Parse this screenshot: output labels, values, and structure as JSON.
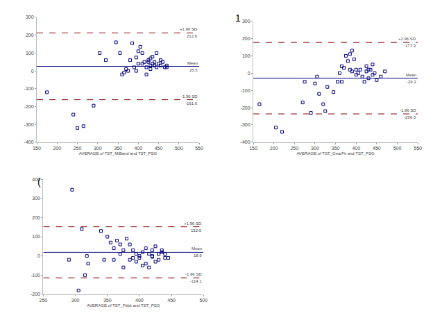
{
  "chart_data": [
    {
      "type": "scatter",
      "x_label": "AVERAGE of TST_MiBand and TST_PSG",
      "x": [
        175,
        240,
        250,
        265,
        290,
        305,
        320,
        345,
        355,
        360,
        365,
        370,
        375,
        380,
        385,
        390,
        395,
        400,
        405,
        410,
        410,
        415,
        420,
        420,
        425,
        425,
        430,
        430,
        435,
        435,
        440,
        440,
        445,
        445,
        450,
        455,
        460,
        465,
        470,
        470,
        455,
        430,
        400,
        395
      ],
      "values": [
        -120,
        -245,
        -320,
        -310,
        -195,
        100,
        60,
        160,
        100,
        -20,
        -10,
        10,
        0,
        60,
        155,
        20,
        75,
        110,
        135,
        100,
        40,
        50,
        20,
        -20,
        60,
        50,
        30,
        70,
        40,
        80,
        30,
        50,
        100,
        20,
        40,
        30,
        50,
        20,
        20,
        30,
        60,
        10,
        40,
        0
      ],
      "color": "#000080",
      "marker": "square-open",
      "xlim": [
        150,
        550
      ],
      "xticks": [
        150,
        200,
        250,
        300,
        350,
        400,
        450,
        500,
        550
      ],
      "ylim": [
        -400,
        300
      ],
      "yticks": [
        -400,
        -300,
        -200,
        -100,
        0,
        100,
        200,
        300
      ],
      "reference_lines": [
        {
          "label": "+1.96 SD",
          "value": 212.6,
          "value_label": "212.6",
          "line_style": "dashed",
          "color": "#800000"
        },
        {
          "label": "Mean",
          "value": 25.5,
          "value_label": "25.5",
          "line_style": "solid",
          "color": "#000080"
        },
        {
          "label": "-1.96 SD",
          "value": -161.6,
          "value_label": "-161.6",
          "line_style": "dashed",
          "color": "#800000"
        }
      ]
    },
    {
      "type": "scatter",
      "x_label": "AVERAGE of TST_GearFit and TST_PSG",
      "panel_label": "1",
      "x": [
        165,
        205,
        220,
        270,
        275,
        290,
        300,
        305,
        310,
        320,
        325,
        330,
        345,
        355,
        360,
        365,
        365,
        370,
        375,
        380,
        385,
        385,
        390,
        395,
        390,
        400,
        400,
        405,
        410,
        415,
        420,
        425,
        425,
        430,
        430,
        435,
        440,
        440,
        445,
        450,
        460,
        470
      ],
      "values": [
        -180,
        -315,
        -340,
        -170,
        -50,
        -230,
        -60,
        -20,
        -120,
        -180,
        -220,
        -80,
        -110,
        -50,
        0,
        -50,
        40,
        30,
        100,
        70,
        110,
        20,
        130,
        80,
        10,
        -10,
        20,
        0,
        20,
        -20,
        -50,
        10,
        40,
        20,
        -30,
        20,
        50,
        -10,
        0,
        -40,
        -20,
        10
      ],
      "color": "#000080",
      "marker": "square-open",
      "xlim": [
        150,
        550
      ],
      "xticks": [
        150,
        200,
        250,
        300,
        350,
        400,
        450,
        500,
        550
      ],
      "ylim": [
        -400,
        300
      ],
      "yticks": [
        -400,
        -300,
        -200,
        -100,
        0,
        100,
        200,
        300
      ],
      "reference_lines": [
        {
          "label": "+1.96 SD",
          "value": 177.3,
          "value_label": "177.3",
          "line_style": "dashed",
          "color": "#800000"
        },
        {
          "label": "Mean",
          "value": -29.3,
          "value_label": "-29.3",
          "line_style": "solid",
          "color": "#000080"
        },
        {
          "label": "-1.96 SD",
          "value": -236.0,
          "value_label": "-236.0",
          "line_style": "dashed",
          "color": "#800000"
        }
      ]
    },
    {
      "type": "scatter",
      "x_label": "AVERAGE of TST_Fitbit and TST_PSG",
      "panel_label": "(",
      "x": [
        290,
        295,
        305,
        310,
        315,
        318,
        320,
        340,
        345,
        350,
        355,
        360,
        360,
        365,
        370,
        370,
        375,
        375,
        380,
        385,
        385,
        390,
        390,
        395,
        395,
        400,
        400,
        405,
        405,
        410,
        410,
        415,
        415,
        420,
        420,
        425,
        425,
        430,
        430,
        435,
        435,
        440,
        440,
        445,
        420
      ],
      "values": [
        -20,
        345,
        -180,
        140,
        -100,
        0,
        -40,
        130,
        -20,
        100,
        70,
        40,
        -20,
        80,
        60,
        10,
        30,
        -60,
        90,
        -20,
        60,
        30,
        -10,
        10,
        -30,
        0,
        -10,
        20,
        -50,
        -40,
        40,
        10,
        -60,
        0,
        30,
        -30,
        50,
        10,
        -20,
        20,
        30,
        10,
        -10,
        -10,
        -5
      ],
      "color": "#000080",
      "marker": "square-open",
      "xlim": [
        250,
        500
      ],
      "xticks": [
        250,
        300,
        350,
        400,
        450,
        500
      ],
      "ylim": [
        -200,
        400
      ],
      "yticks": [
        -200,
        -100,
        0,
        100,
        200,
        300,
        400
      ],
      "reference_lines": [
        {
          "label": "+1.96 SD",
          "value": 152.0,
          "value_label": "152.0",
          "line_style": "dashed",
          "color": "#800000"
        },
        {
          "label": "Mean",
          "value": 18.9,
          "value_label": "18.9",
          "line_style": "solid",
          "color": "#000080"
        },
        {
          "label": "-1.96 SD",
          "value": -114.1,
          "value_label": "-114.1",
          "line_style": "dashed",
          "color": "#800000"
        }
      ]
    }
  ]
}
